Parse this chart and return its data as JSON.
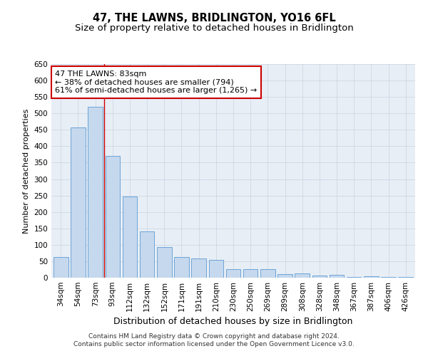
{
  "title": "47, THE LAWNS, BRIDLINGTON, YO16 6FL",
  "subtitle": "Size of property relative to detached houses in Bridlington",
  "xlabel": "Distribution of detached houses by size in Bridlington",
  "ylabel": "Number of detached properties",
  "categories": [
    "34sqm",
    "54sqm",
    "73sqm",
    "93sqm",
    "112sqm",
    "132sqm",
    "152sqm",
    "171sqm",
    "191sqm",
    "210sqm",
    "230sqm",
    "250sqm",
    "269sqm",
    "289sqm",
    "308sqm",
    "328sqm",
    "348sqm",
    "367sqm",
    "387sqm",
    "406sqm",
    "426sqm"
  ],
  "values": [
    62,
    457,
    521,
    370,
    247,
    140,
    93,
    62,
    58,
    55,
    26,
    25,
    26,
    11,
    12,
    6,
    8,
    3,
    4,
    3,
    3
  ],
  "bar_color": "#c5d8ed",
  "bar_edge_color": "#5b9bd5",
  "red_line_x": 2.5,
  "annotation_text": "47 THE LAWNS: 83sqm\n← 38% of detached houses are smaller (794)\n61% of semi-detached houses are larger (1,265) →",
  "annotation_box_color": "#ffffff",
  "annotation_box_edge": "#cc0000",
  "grid_color": "#c8d4e3",
  "background_color": "#e8eef5",
  "footer_line1": "Contains HM Land Registry data © Crown copyright and database right 2024.",
  "footer_line2": "Contains public sector information licensed under the Open Government Licence v3.0.",
  "ylim": [
    0,
    650
  ],
  "yticks": [
    0,
    50,
    100,
    150,
    200,
    250,
    300,
    350,
    400,
    450,
    500,
    550,
    600,
    650
  ],
  "title_fontsize": 10.5,
  "subtitle_fontsize": 9.5,
  "xlabel_fontsize": 9,
  "ylabel_fontsize": 8,
  "tick_fontsize": 7.5,
  "annotation_fontsize": 8,
  "footer_fontsize": 6.5
}
